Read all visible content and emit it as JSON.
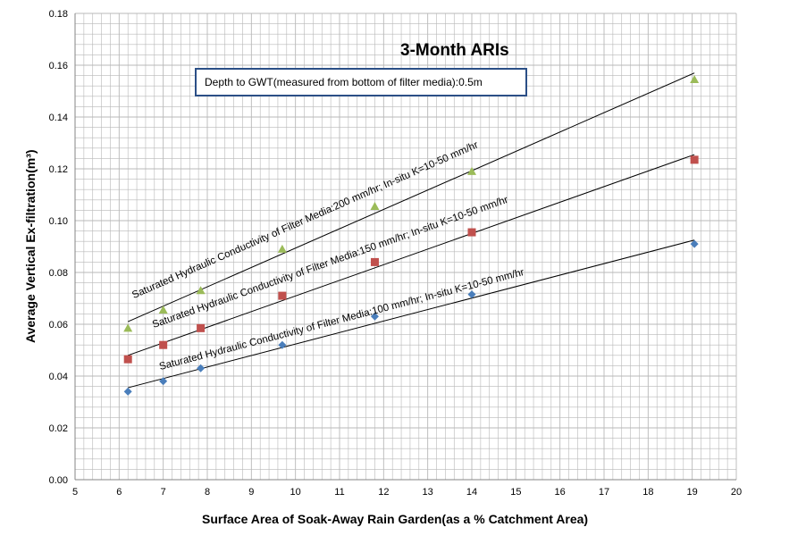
{
  "chart_data": {
    "type": "scatter",
    "title": "3-Month ARIs",
    "xlabel": "Surface Area of Soak-Away Rain Garden(as a %  Catchment Area)",
    "ylabel": "Average Vertical Ex-filtration(m³)",
    "xlim": [
      5,
      20
    ],
    "ylim": [
      0,
      0.18
    ],
    "x_ticks": [
      "5",
      "6",
      "7",
      "8",
      "9",
      "10",
      "11",
      "12",
      "13",
      "14",
      "15",
      "16",
      "17",
      "18",
      "19",
      "20"
    ],
    "y_ticks": [
      "0.00",
      "0.02",
      "0.04",
      "0.06",
      "0.08",
      "0.10",
      "0.12",
      "0.14",
      "0.16",
      "0.18"
    ],
    "grid": true,
    "annotation": "Depth to GWT(measured from bottom of filter media):0.5m",
    "series": [
      {
        "label": "Saturated Hydraulic Conductivity of Filter Media:100 mm/hr; In-situ K=10-50 mm/hr",
        "marker": "diamond",
        "color": "#4a7ebb",
        "x": [
          6.2,
          7.0,
          7.85,
          9.7,
          11.8,
          14.0,
          19.05
        ],
        "y": [
          0.034,
          0.038,
          0.043,
          0.052,
          0.063,
          0.0715,
          0.091
        ],
        "trendline": {
          "x": [
            6.2,
            19.05
          ],
          "y": [
            0.0355,
            0.0925
          ]
        }
      },
      {
        "label": "Saturated Hydraulic Conductivity of Filter Media:150 mm/hr; In-situ K=10-50 mm/hr",
        "marker": "square",
        "color": "#c0504d",
        "x": [
          6.2,
          7.0,
          7.85,
          9.7,
          11.8,
          14.0,
          19.05
        ],
        "y": [
          0.0465,
          0.052,
          0.0585,
          0.071,
          0.084,
          0.0955,
          0.1235
        ],
        "trendline": {
          "x": [
            6.2,
            19.05
          ],
          "y": [
            0.048,
            0.1255
          ]
        }
      },
      {
        "label": "Saturated Hydraulic Conductivity of Filter Media:200 mm/hr; In-situ K=10-50 mm/hr",
        "marker": "triangle",
        "color": "#9bbb59",
        "x": [
          6.2,
          7.0,
          7.85,
          9.7,
          11.8,
          14.0,
          19.05
        ],
        "y": [
          0.0585,
          0.0655,
          0.073,
          0.089,
          0.1055,
          0.119,
          0.1545
        ],
        "trendline": {
          "x": [
            6.2,
            19.05
          ],
          "y": [
            0.061,
            0.157
          ]
        }
      }
    ]
  }
}
